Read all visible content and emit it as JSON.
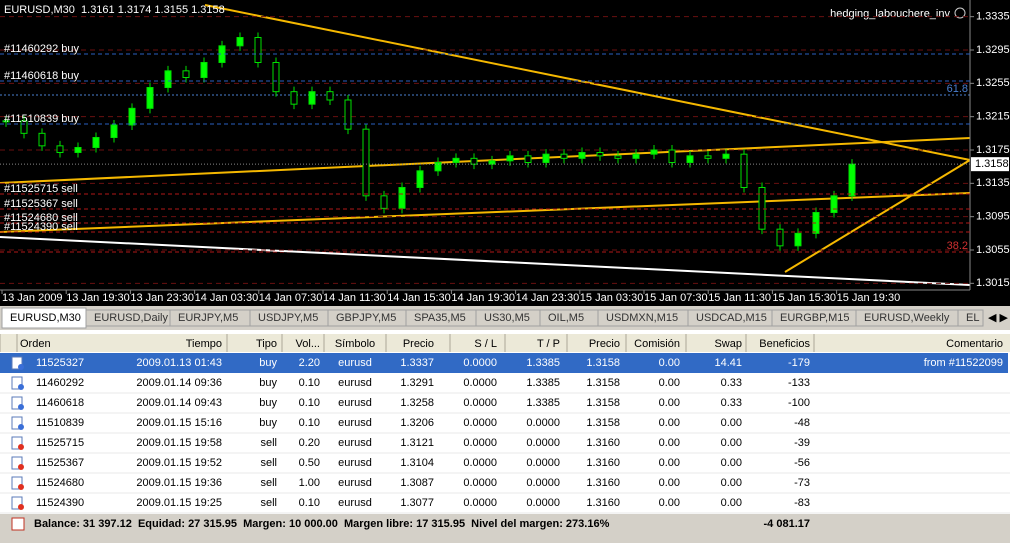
{
  "header": {
    "symbol_info": "EURUSD,M30  1.3161 1.3174 1.3155 1.3158",
    "expert": "hedging_labouchere_inv"
  },
  "chart": {
    "ylim": [
      1.3355,
      1.3007
    ],
    "yticks": [
      1.3335,
      1.3295,
      1.3255,
      1.3215,
      1.3175,
      1.3135,
      1.3095,
      1.3055,
      1.3015
    ],
    "current_price": 1.3158,
    "fibo_labels": [
      "61.8",
      "38.2"
    ],
    "order_labels": [
      "#11460292 buy",
      "#11460618 buy",
      "#11510839 buy",
      "#11525715 sell",
      "#11525367 sell",
      "#11524680 sell",
      "#11524390 sell"
    ],
    "time_labels": [
      "13 Jan 2009",
      "13 Jan 19:30",
      "13 Jan 23:30",
      "14 Jan 03:30",
      "14 Jan 07:30",
      "14 Jan 11:30",
      "14 Jan 15:30",
      "14 Jan 19:30",
      "14 Jan 23:30",
      "15 Jan 03:30",
      "15 Jan 07:30",
      "15 Jan 11:30",
      "15 Jan 15:30",
      "15 Jan 19:30"
    ],
    "closes": [
      1.321,
      1.3195,
      1.318,
      1.3172,
      1.3178,
      1.319,
      1.3205,
      1.3225,
      1.325,
      1.327,
      1.3262,
      1.328,
      1.33,
      1.331,
      1.328,
      1.3245,
      1.323,
      1.3245,
      1.3235,
      1.32,
      1.312,
      1.3105,
      1.313,
      1.315,
      1.316,
      1.3165,
      1.3158,
      1.3162,
      1.3168,
      1.316,
      1.317,
      1.3165,
      1.3172,
      1.3168,
      1.3165,
      1.317,
      1.3175,
      1.316,
      1.3168,
      1.3165,
      1.317,
      1.313,
      1.308,
      1.306,
      1.3075,
      1.31,
      1.312,
      1.3158
    ]
  },
  "tabs": [
    "EURUSD,M30",
    "EURUSD,Daily",
    "EURJPY,M5",
    "USDJPY,M5",
    "GBPJPY,M5",
    "SPA35,M5",
    "US30,M5",
    "OIL,M5",
    "USDMXN,M15",
    "USDCAD,M15",
    "EURGBP,M15",
    "EURUSD,Weekly",
    "EL"
  ],
  "table": {
    "columns": [
      "Orden",
      "Tiempo",
      "Tipo",
      "Vol...",
      "Símbolo",
      "Precio",
      "S / L",
      "T / P",
      "Precio",
      "Comisión",
      "Swap",
      "Beneficios",
      "Comentario"
    ],
    "rows": [
      {
        "cells": [
          "11525327",
          "2009.01.13 01:43",
          "buy",
          "2.20",
          "eurusd",
          "1.3337",
          "0.0000",
          "1.3385",
          "1.3158",
          "0.00",
          "14.41",
          "-179"
        ],
        "comment": "from #11522099"
      },
      {
        "cells": [
          "11460292",
          "2009.01.14 09:36",
          "buy",
          "0.10",
          "eurusd",
          "1.3291",
          "0.0000",
          "1.3385",
          "1.3158",
          "0.00",
          "0.33",
          "-133"
        ]
      },
      {
        "cells": [
          "11460618",
          "2009.01.14 09:43",
          "buy",
          "0.10",
          "eurusd",
          "1.3258",
          "0.0000",
          "1.3385",
          "1.3158",
          "0.00",
          "0.33",
          "-100"
        ]
      },
      {
        "cells": [
          "11510839",
          "2009.01.15 15:16",
          "buy",
          "0.10",
          "eurusd",
          "1.3206",
          "0.0000",
          "0.0000",
          "1.3158",
          "0.00",
          "0.00",
          "-48"
        ]
      },
      {
        "cells": [
          "11525715",
          "2009.01.15 19:58",
          "sell",
          "0.20",
          "eurusd",
          "1.3121",
          "0.0000",
          "0.0000",
          "1.3160",
          "0.00",
          "0.00",
          "-39"
        ]
      },
      {
        "cells": [
          "11525367",
          "2009.01.15 19:52",
          "sell",
          "0.50",
          "eurusd",
          "1.3104",
          "0.0000",
          "0.0000",
          "1.3160",
          "0.00",
          "0.00",
          "-56"
        ]
      },
      {
        "cells": [
          "11524680",
          "2009.01.15 19:36",
          "sell",
          "1.00",
          "eurusd",
          "1.3087",
          "0.0000",
          "0.0000",
          "1.3160",
          "0.00",
          "0.00",
          "-73"
        ]
      },
      {
        "cells": [
          "11524390",
          "2009.01.15 19:25",
          "sell",
          "0.10",
          "eurusd",
          "1.3077",
          "0.0000",
          "0.0000",
          "1.3160",
          "0.00",
          "0.00",
          "-83"
        ]
      }
    ],
    "footer": {
      "summary": "Balance: 31 397.12  Equidad: 27 315.95  Margen: 10 000.00  Margen libre: 17 315.95  Nivel del margen: 273.16%",
      "total": "-4 081.17"
    }
  }
}
